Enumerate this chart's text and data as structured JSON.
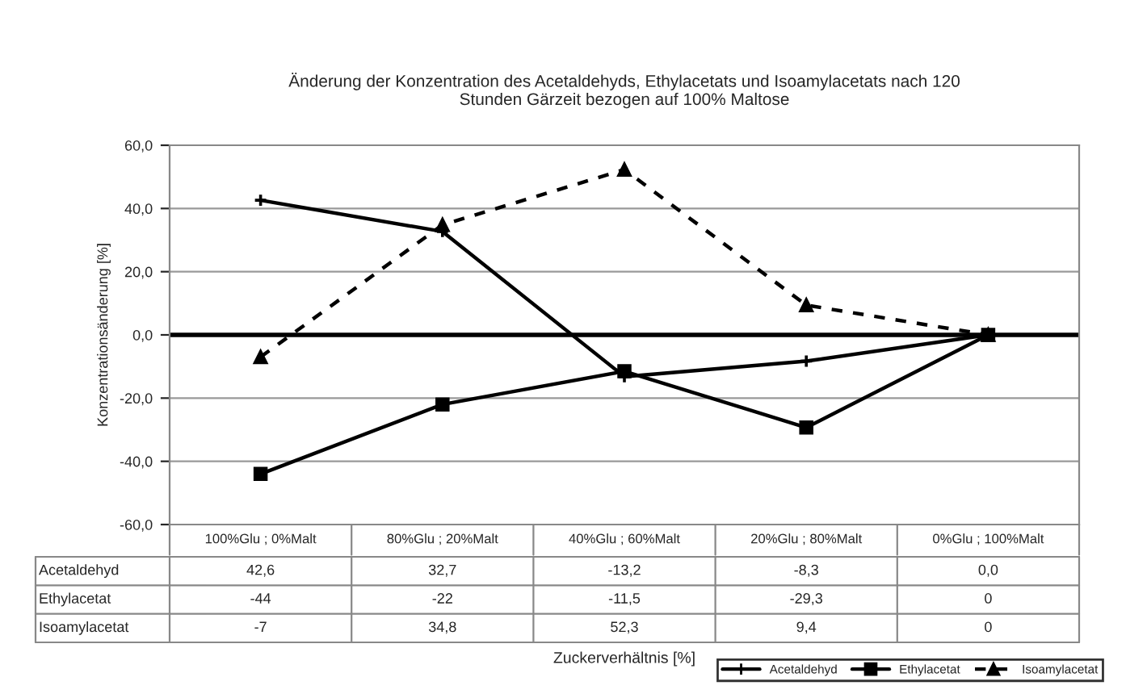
{
  "chart_data": {
    "type": "line",
    "title": "Änderung der Konzentration des Acetaldehyds, Ethylacetats und Isoamylacetats nach 120\nStunden Gärzeit bezogen auf 100% Maltose",
    "annotations": [
      "Zuckerverhältnis [%]"
    ],
    "ylabel": "Konzentrationsänderung [%]",
    "categories": [
      "100%Glu ; 0%Malt",
      "80%Glu ; 20%Malt",
      "40%Glu ; 60%Malt",
      "20%Glu ; 80%Malt",
      "0%Glu ; 100%Malt"
    ],
    "series": [
      {
        "name": "Acetaldehyd",
        "color": "#000000",
        "marker": "cross",
        "line_style": "solid",
        "values": [
          42.6,
          32.7,
          -13.2,
          -8.3,
          0.0
        ],
        "value_labels": [
          "42,6",
          "32,7",
          "-13,2",
          "-8,3",
          "0,0"
        ]
      },
      {
        "name": "Ethylacetat",
        "color": "#000000",
        "marker": "square",
        "line_style": "solid",
        "values": [
          -44,
          -22,
          -11.5,
          -29.3,
          0
        ],
        "value_labels": [
          "-44",
          "-22",
          "-11,5",
          "-29,3",
          "0"
        ]
      },
      {
        "name": "Isoamylacetat",
        "color": "#000000",
        "marker": "triangle",
        "line_style": "dashed",
        "values": [
          -7,
          34.8,
          52.3,
          9.4,
          0
        ],
        "value_labels": [
          "-7",
          "34,8",
          "52,3",
          "9,4",
          "0"
        ]
      }
    ],
    "ylim": [
      -60,
      60
    ],
    "yticks": [
      {
        "value": -60,
        "label": "-60,0"
      },
      {
        "value": -40,
        "label": "-40,0"
      },
      {
        "value": -20,
        "label": "-20,0"
      },
      {
        "value": 0,
        "label": "0,0"
      },
      {
        "value": 20,
        "label": "20,0"
      },
      {
        "value": 40,
        "label": "40,0"
      },
      {
        "value": 60,
        "label": "60,0"
      }
    ],
    "ref_lines": [
      {
        "axis": "y",
        "value": 0,
        "label": null,
        "color": "#000000"
      }
    ],
    "grid": "y",
    "legend": "bottom right"
  }
}
